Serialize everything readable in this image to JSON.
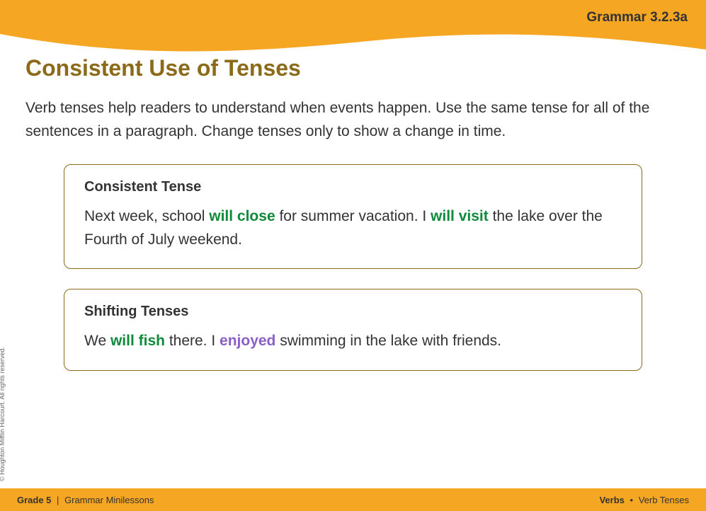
{
  "header": {
    "code": "Grammar 3.2.3a",
    "wave_color": "#f5a623",
    "background": "#ffffff"
  },
  "title": {
    "text": "Consistent Use of Tenses",
    "color": "#8b6a1a",
    "fontsize": 32
  },
  "intro": {
    "text": "Verb tenses help readers to understand when events happen. Use the same tense for all of the sentences in a paragraph. Change tenses only to show a change in time.",
    "fontsize": 21,
    "color": "#333333"
  },
  "box1": {
    "title": "Consistent Tense",
    "segments": [
      {
        "text": "Next week, school ",
        "style": "plain"
      },
      {
        "text": "will close",
        "style": "green"
      },
      {
        "text": " for summer vacation. I ",
        "style": "plain"
      },
      {
        "text": "will visit",
        "style": "green"
      },
      {
        "text": " the lake over the Fourth of July weekend.",
        "style": "plain"
      }
    ],
    "border_color": "#8b6a1a"
  },
  "box2": {
    "title": "Shifting Tenses",
    "segments": [
      {
        "text": "We ",
        "style": "plain"
      },
      {
        "text": "will fish",
        "style": "green"
      },
      {
        "text": " there. I ",
        "style": "plain"
      },
      {
        "text": "enjoyed",
        "style": "purple"
      },
      {
        "text": " swimming in the lake with friends.",
        "style": "plain"
      }
    ],
    "border_color": "#8b6a1a"
  },
  "colors": {
    "green_highlight": "#0f8a3a",
    "purple_highlight": "#8a5fc7",
    "footer_bg": "#f5a623",
    "text": "#333333"
  },
  "footer": {
    "grade": "Grade 5",
    "section": "Grammar Minilessons",
    "topic_bold": "Verbs",
    "topic_sub": "Verb Tenses"
  },
  "copyright": "© Houghton Mifflin Harcourt. All rights reserved."
}
